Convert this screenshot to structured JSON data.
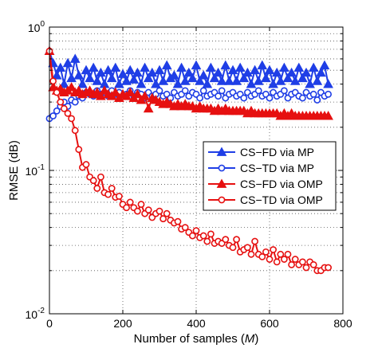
{
  "chart_data": {
    "type": "line",
    "xlabel": "Number of samples (",
    "xlabel_var": "M",
    "xlabel_close": ")",
    "ylabel": "RMSE (dB)",
    "xlim": [
      0,
      800
    ],
    "ylim": [
      0.01,
      1
    ],
    "yscale": "log",
    "grid": "dotted",
    "legend_position": "center-right",
    "x_ticks": [
      0,
      200,
      400,
      600,
      800
    ],
    "x_tick_labels": [
      "0",
      "200",
      "400",
      "600",
      "800"
    ],
    "y_ticks": [
      0.01,
      0.1,
      1
    ],
    "y_tick_labels": [
      {
        "base": "10",
        "exp": "-2"
      },
      {
        "base": "10",
        "exp": "-1"
      },
      {
        "base": "10",
        "exp": "0"
      }
    ],
    "series": [
      {
        "name": "CS−FD via MP",
        "color": "#1f3ee6",
        "marker": "triangle",
        "x": [
          0,
          10,
          20,
          30,
          40,
          50,
          60,
          70,
          80,
          90,
          100,
          110,
          120,
          130,
          140,
          150,
          160,
          170,
          180,
          190,
          200,
          210,
          220,
          230,
          240,
          250,
          260,
          270,
          280,
          290,
          300,
          310,
          320,
          330,
          340,
          350,
          360,
          370,
          380,
          390,
          400,
          410,
          420,
          430,
          440,
          450,
          460,
          470,
          480,
          490,
          500,
          510,
          520,
          530,
          540,
          550,
          560,
          570,
          580,
          590,
          600,
          610,
          620,
          630,
          640,
          650,
          660,
          670,
          680,
          690,
          700,
          710,
          720,
          730,
          740,
          750,
          760
        ],
        "values": [
          0.68,
          0.56,
          0.46,
          0.52,
          0.4,
          0.56,
          0.44,
          0.6,
          0.46,
          0.4,
          0.5,
          0.44,
          0.52,
          0.42,
          0.48,
          0.4,
          0.5,
          0.44,
          0.52,
          0.4,
          0.47,
          0.42,
          0.5,
          0.43,
          0.48,
          0.4,
          0.52,
          0.44,
          0.48,
          0.4,
          0.5,
          0.42,
          0.54,
          0.44,
          0.46,
          0.4,
          0.52,
          0.42,
          0.48,
          0.44,
          0.54,
          0.42,
          0.46,
          0.4,
          0.52,
          0.44,
          0.48,
          0.42,
          0.54,
          0.42,
          0.5,
          0.42,
          0.52,
          0.44,
          0.48,
          0.4,
          0.5,
          0.42,
          0.54,
          0.44,
          0.5,
          0.4,
          0.48,
          0.42,
          0.52,
          0.44,
          0.48,
          0.42,
          0.52,
          0.44,
          0.48,
          0.4,
          0.52,
          0.42,
          0.48,
          0.54,
          0.4
        ]
      },
      {
        "name": "CS−TD via MP",
        "color": "#1f3ee6",
        "marker": "circle",
        "x": [
          0,
          10,
          20,
          30,
          40,
          50,
          60,
          70,
          80,
          90,
          100,
          110,
          120,
          130,
          140,
          150,
          160,
          170,
          180,
          190,
          200,
          210,
          220,
          230,
          240,
          250,
          260,
          270,
          280,
          290,
          300,
          310,
          320,
          330,
          340,
          350,
          360,
          370,
          380,
          390,
          400,
          410,
          420,
          430,
          440,
          450,
          460,
          470,
          480,
          490,
          500,
          510,
          520,
          530,
          540,
          550,
          560,
          570,
          580,
          590,
          600,
          610,
          620,
          630,
          640,
          650,
          660,
          670,
          680,
          690,
          700,
          710,
          720,
          730,
          740,
          750,
          760
        ],
        "values": [
          0.23,
          0.24,
          0.26,
          0.28,
          0.3,
          0.28,
          0.31,
          0.3,
          0.33,
          0.32,
          0.35,
          0.34,
          0.33,
          0.36,
          0.34,
          0.35,
          0.33,
          0.36,
          0.34,
          0.35,
          0.33,
          0.34,
          0.36,
          0.33,
          0.35,
          0.34,
          0.32,
          0.35,
          0.33,
          0.34,
          0.36,
          0.33,
          0.34,
          0.32,
          0.35,
          0.33,
          0.34,
          0.36,
          0.33,
          0.35,
          0.34,
          0.32,
          0.36,
          0.33,
          0.34,
          0.35,
          0.33,
          0.36,
          0.32,
          0.34,
          0.35,
          0.33,
          0.34,
          0.32,
          0.35,
          0.33,
          0.34,
          0.36,
          0.33,
          0.34,
          0.32,
          0.35,
          0.33,
          0.34,
          0.36,
          0.32,
          0.34,
          0.35,
          0.33,
          0.32,
          0.35,
          0.33,
          0.34,
          0.31,
          0.35,
          0.33,
          0.34
        ]
      },
      {
        "name": "CS−FD via OMP",
        "color": "#e61010",
        "marker": "triangle",
        "x": [
          0,
          10,
          20,
          30,
          40,
          50,
          60,
          70,
          80,
          90,
          100,
          110,
          120,
          130,
          140,
          150,
          160,
          170,
          180,
          190,
          200,
          210,
          220,
          230,
          240,
          250,
          260,
          270,
          280,
          290,
          300,
          310,
          320,
          330,
          340,
          350,
          360,
          370,
          380,
          390,
          400,
          410,
          420,
          430,
          440,
          450,
          460,
          470,
          480,
          490,
          500,
          510,
          520,
          530,
          540,
          550,
          560,
          570,
          580,
          590,
          600,
          610,
          620,
          630,
          640,
          650,
          660,
          670,
          680,
          690,
          700,
          710,
          720,
          730,
          740,
          750,
          760
        ],
        "values": [
          0.68,
          0.38,
          0.36,
          0.37,
          0.35,
          0.36,
          0.38,
          0.35,
          0.36,
          0.34,
          0.35,
          0.36,
          0.34,
          0.35,
          0.33,
          0.36,
          0.34,
          0.33,
          0.35,
          0.32,
          0.34,
          0.33,
          0.35,
          0.32,
          0.34,
          0.31,
          0.33,
          0.27,
          0.32,
          0.31,
          0.3,
          0.29,
          0.3,
          0.29,
          0.28,
          0.29,
          0.28,
          0.29,
          0.28,
          0.28,
          0.27,
          0.28,
          0.27,
          0.27,
          0.27,
          0.26,
          0.27,
          0.26,
          0.27,
          0.26,
          0.26,
          0.26,
          0.26,
          0.26,
          0.25,
          0.26,
          0.25,
          0.25,
          0.25,
          0.25,
          0.25,
          0.25,
          0.25,
          0.24,
          0.25,
          0.24,
          0.25,
          0.24,
          0.24,
          0.24,
          0.24,
          0.24,
          0.24,
          0.24,
          0.24,
          0.24,
          0.24
        ]
      },
      {
        "name": "CS−TD via OMP",
        "color": "#e61010",
        "marker": "circle",
        "x": [
          0,
          10,
          20,
          30,
          40,
          50,
          60,
          70,
          80,
          90,
          100,
          110,
          120,
          130,
          140,
          150,
          160,
          170,
          180,
          190,
          200,
          210,
          220,
          230,
          240,
          250,
          260,
          270,
          280,
          290,
          300,
          310,
          320,
          330,
          340,
          350,
          360,
          370,
          380,
          390,
          400,
          410,
          420,
          430,
          440,
          450,
          460,
          470,
          480,
          490,
          500,
          510,
          520,
          530,
          540,
          550,
          560,
          570,
          580,
          590,
          600,
          610,
          620,
          630,
          640,
          650,
          660,
          670,
          680,
          690,
          700,
          710,
          720,
          730,
          740,
          750,
          760
        ],
        "values": [
          0.68,
          0.42,
          0.35,
          0.3,
          0.27,
          0.25,
          0.23,
          0.19,
          0.14,
          0.105,
          0.11,
          0.09,
          0.085,
          0.075,
          0.09,
          0.07,
          0.068,
          0.075,
          0.065,
          0.066,
          0.058,
          0.055,
          0.06,
          0.055,
          0.052,
          0.058,
          0.05,
          0.053,
          0.047,
          0.05,
          0.052,
          0.046,
          0.05,
          0.045,
          0.043,
          0.044,
          0.039,
          0.04,
          0.037,
          0.035,
          0.038,
          0.034,
          0.035,
          0.032,
          0.036,
          0.031,
          0.032,
          0.031,
          0.033,
          0.03,
          0.029,
          0.033,
          0.027,
          0.028,
          0.029,
          0.026,
          0.032,
          0.026,
          0.025,
          0.027,
          0.024,
          0.028,
          0.023,
          0.026,
          0.024,
          0.026,
          0.022,
          0.024,
          0.022,
          0.023,
          0.021,
          0.023,
          0.022,
          0.02,
          0.02,
          0.021,
          0.021
        ]
      }
    ]
  }
}
